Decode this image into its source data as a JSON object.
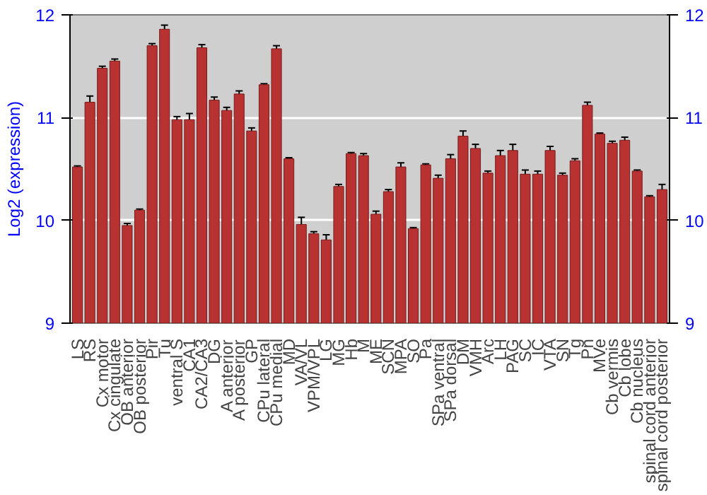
{
  "chart_data": {
    "type": "bar",
    "ylabel": "Log2 (expression)",
    "categories": [
      "LS",
      "RS",
      "Cx motor",
      "Cx cingulate",
      "OB anterior",
      "OB posterior",
      "Pir",
      "Tu",
      "ventral S",
      "CA1",
      "CA2/CA3",
      "DG",
      "A anterior",
      "A posterior",
      "GP",
      "CPu lateral",
      "CPu medial",
      "MD",
      "VA/VL",
      "VPM/VPL",
      "LG",
      "MG",
      "Hb",
      "M",
      "ME",
      "SCN",
      "MPA",
      "SO",
      "Pa",
      "SPa ventral",
      "SPa dorsal",
      "DM",
      "VMH",
      "Arc",
      "LH",
      "PAG",
      "SC",
      "IC",
      "VTA",
      "SN",
      "Tg",
      "Pn",
      "MVe",
      "Cb vermis",
      "Cb lobe",
      "Cb nucleus",
      "spinal cord anterior",
      "spinal cord posterior"
    ],
    "values": [
      10.52,
      11.15,
      11.48,
      11.55,
      9.95,
      10.1,
      11.7,
      11.86,
      10.98,
      10.98,
      11.68,
      11.17,
      11.07,
      11.23,
      10.87,
      11.32,
      11.67,
      10.6,
      9.96,
      9.87,
      9.81,
      10.33,
      10.65,
      10.63,
      10.06,
      10.28,
      10.52,
      9.92,
      10.54,
      10.41,
      10.6,
      10.82,
      10.7,
      10.46,
      10.63,
      10.68,
      10.45,
      10.45,
      10.68,
      10.44,
      10.58,
      11.12,
      10.84,
      10.75,
      10.78,
      10.48,
      10.23,
      10.3
    ],
    "errors": [
      0.01,
      0.06,
      0.02,
      0.02,
      0.02,
      0.01,
      0.02,
      0.04,
      0.03,
      0.06,
      0.03,
      0.03,
      0.03,
      0.03,
      0.03,
      0.01,
      0.03,
      0.01,
      0.07,
      0.02,
      0.05,
      0.02,
      0.01,
      0.02,
      0.03,
      0.02,
      0.04,
      0.01,
      0.01,
      0.03,
      0.04,
      0.05,
      0.04,
      0.02,
      0.05,
      0.06,
      0.04,
      0.03,
      0.04,
      0.02,
      0.02,
      0.03,
      0.01,
      0.02,
      0.03,
      0.01,
      0.01,
      0.05
    ],
    "color": "#b83232",
    "ylim": [
      9,
      12
    ],
    "yticks": [
      9,
      10,
      11,
      12
    ],
    "y2lim": [
      9,
      12
    ],
    "y2ticks": [
      9,
      10,
      11,
      12
    ],
    "grid": "y"
  }
}
